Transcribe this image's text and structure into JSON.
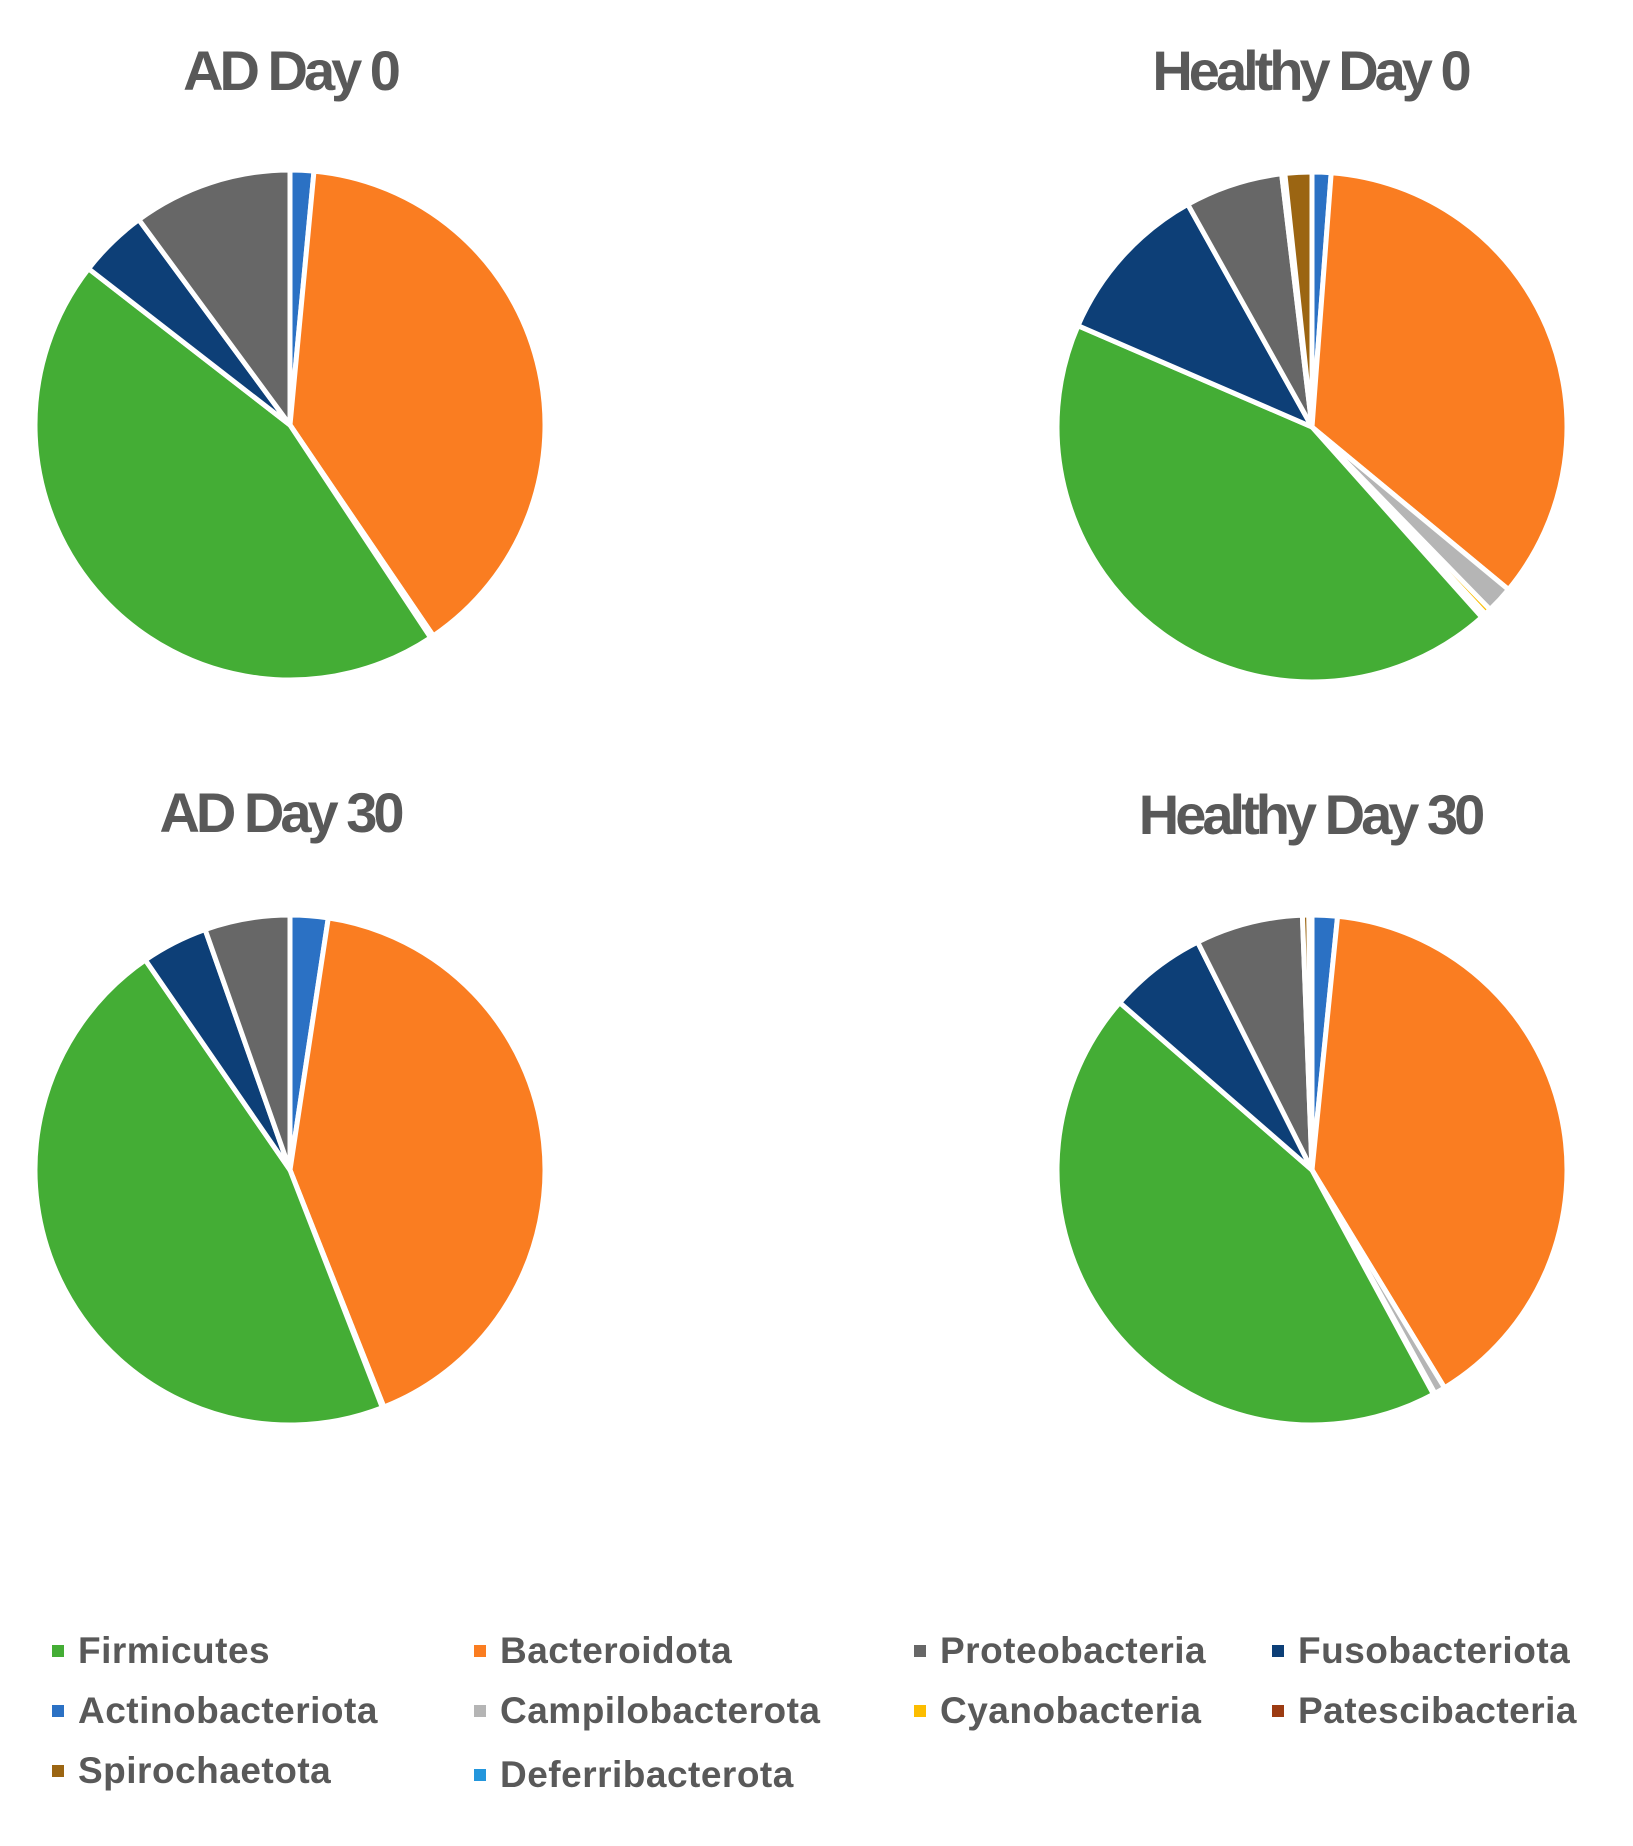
{
  "colors": {
    "Firmicutes": "#44ad35",
    "Bacteroidota": "#fa7d21",
    "Proteobacteria": "#676767",
    "Fusobacteriota": "#0d3f77",
    "Actinobacteriota": "#2b71c4",
    "Campilobacterota": "#b5b5b5",
    "Cyanobacteria": "#fcbd00",
    "Patescibacteria": "#9c3b12",
    "Spirochaetota": "#9b6512",
    "Deferribacterota": "#2396dc"
  },
  "legend": {
    "items": [
      "Firmicutes",
      "Bacteroidota",
      "Proteobacteria",
      "Fusobacteriota",
      "Actinobacteriota",
      "Campilobacterota",
      "Cyanobacteria",
      "Patescibacteria",
      "Spirochaetota",
      "Deferribacterota"
    ]
  },
  "chart_data": [
    {
      "type": "pie",
      "title": "AD Day 0",
      "start": "12 o'clock, clockwise",
      "labels": [
        "Actinobacteriota",
        "Bacteroidota",
        "Campilobacterota",
        "Cyanobacteria",
        "Firmicutes",
        "Fusobacteriota",
        "Proteobacteria"
      ],
      "values": [
        1.5,
        39.0,
        0.1,
        0.1,
        44.8,
        4.4,
        10.1
      ]
    },
    {
      "type": "pie",
      "title": "Healthy Day 0",
      "start": "12 o'clock, clockwise",
      "labels": [
        "Actinobacteriota",
        "Bacteroidota",
        "Campilobacterota",
        "Cyanobacteria",
        "Patescibacteria",
        "Firmicutes",
        "Fusobacteriota",
        "Proteobacteria",
        "Deferribacterota",
        "Spirochaetota"
      ],
      "values": [
        1.2,
        34.8,
        1.7,
        0.4,
        0.3,
        43.1,
        10.4,
        6.2,
        0.2,
        1.7
      ]
    },
    {
      "type": "pie",
      "title": "AD Day 30",
      "start": "12 o'clock, clockwise",
      "labels": [
        "Actinobacteriota",
        "Bacteroidota",
        "Campilobacterota",
        "Firmicutes",
        "Fusobacteriota",
        "Proteobacteria"
      ],
      "values": [
        2.4,
        41.6,
        0.1,
        46.3,
        4.2,
        5.4
      ]
    },
    {
      "type": "pie",
      "title": "Healthy Day 30",
      "start": "12 o'clock, clockwise",
      "labels": [
        "Actinobacteriota",
        "Bacteroidota",
        "Campilobacterota",
        "Cyanobacteria",
        "Firmicutes",
        "Fusobacteriota",
        "Proteobacteria",
        "Spirochaetota",
        "Deferribacterota"
      ],
      "values": [
        1.6,
        39.7,
        0.7,
        0.1,
        44.3,
        6.2,
        6.8,
        0.4,
        0.2
      ]
    }
  ]
}
